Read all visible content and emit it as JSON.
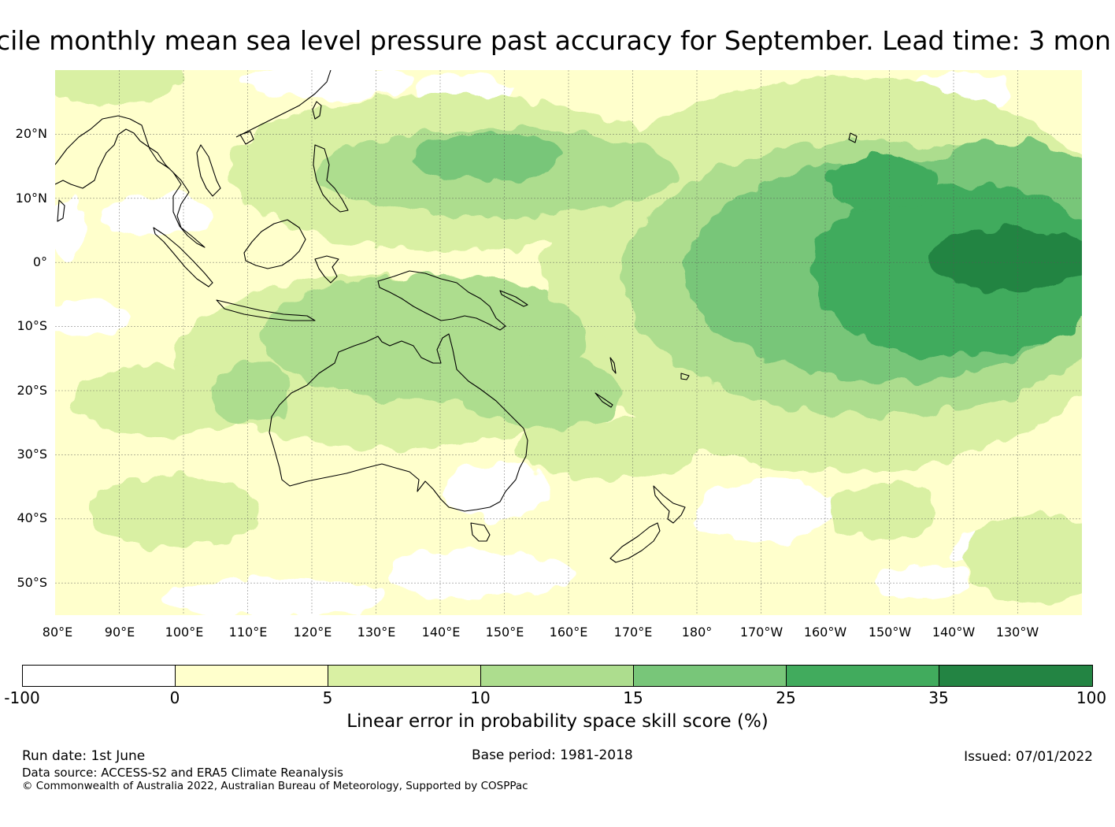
{
  "title": "cile monthly mean sea level pressure past accuracy for September. Lead time: 3 mon",
  "map": {
    "lat_labels": [
      "20°N",
      "10°N",
      "0°",
      "10°S",
      "20°S",
      "30°S",
      "40°S",
      "50°S"
    ],
    "lon_labels": [
      "80°E",
      "90°E",
      "100°E",
      "110°E",
      "120°E",
      "130°E",
      "140°E",
      "150°E",
      "160°E",
      "170°E",
      "180°",
      "170°W",
      "160°W",
      "150°W",
      "140°W",
      "130°W"
    ],
    "extent": {
      "lon_min": 80,
      "lon_max": 240,
      "lat_min": -55,
      "lat_max": 30
    }
  },
  "colorbar": {
    "ticks": [
      "-100",
      "0",
      "5",
      "10",
      "15",
      "25",
      "35",
      "100"
    ],
    "colors": [
      "#ffffff",
      "#ffffcc",
      "#d9f0a3",
      "#addd8e",
      "#78c679",
      "#41ab5d",
      "#238443"
    ],
    "label": "Linear error in probability space skill score (%)"
  },
  "footer": {
    "run_date": "Run date: 1st June",
    "base_period": "Base period: 1981-2018",
    "issued": "Issued: 07/01/2022",
    "data_source": "Data source: ACCESS-S2 and ERA5 Climate Reanalysis",
    "copyright": "© Commonwealth of Australia 2022, Australian Bureau of Meteorology, Supported by COSPPac"
  }
}
